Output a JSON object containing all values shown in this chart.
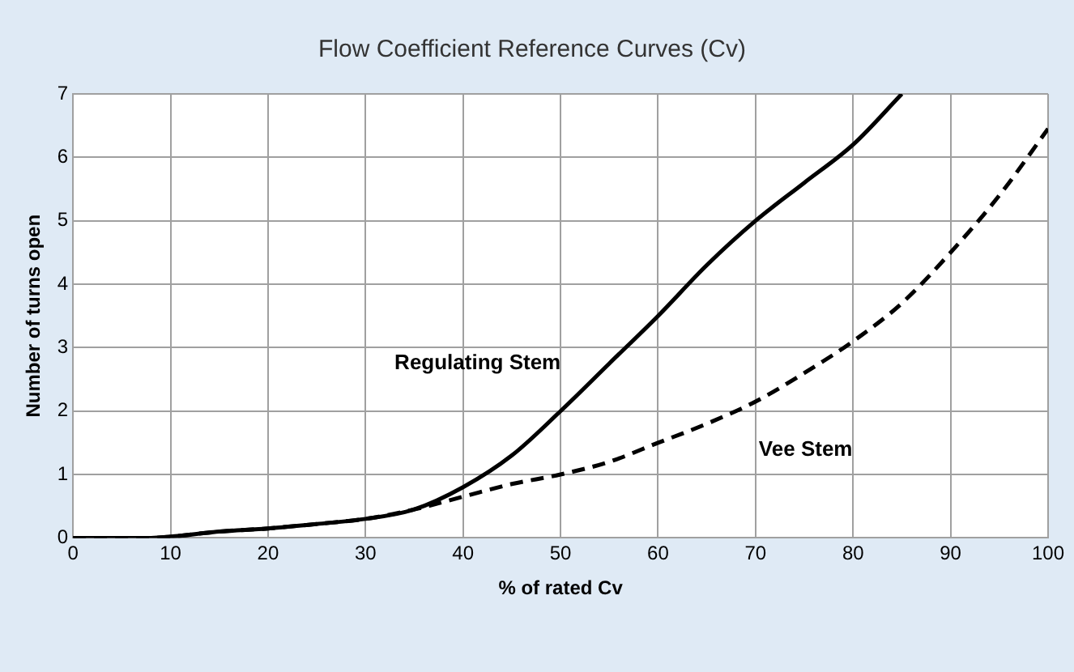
{
  "chart_data": {
    "type": "line",
    "title": "Flow Coefficient Reference Curves (Cv)",
    "xlabel": "% of rated Cv",
    "ylabel": "Number of turns open",
    "xlim": [
      0,
      100
    ],
    "xticks": [
      0,
      10,
      20,
      30,
      40,
      50,
      60,
      70,
      80,
      90,
      100
    ],
    "ylim": [
      0,
      7
    ],
    "yticks": [
      0,
      1,
      2,
      3,
      4,
      5,
      6,
      7
    ],
    "grid": true,
    "marker": "none",
    "legend": false,
    "series": [
      {
        "name": "Regulating Stem",
        "color": "#000000",
        "line_style": "solid",
        "x": [
          0,
          8,
          10,
          15,
          20,
          25,
          30,
          35,
          40,
          45,
          50,
          55,
          60,
          65,
          70,
          75,
          80,
          85
        ],
        "values": [
          0,
          0,
          0.02,
          0.1,
          0.15,
          0.22,
          0.3,
          0.45,
          0.8,
          1.3,
          2.0,
          2.75,
          3.5,
          4.3,
          5.0,
          5.6,
          6.2,
          7.0
        ]
      },
      {
        "name": "Vee Stem",
        "color": "#000000",
        "line_style": "dashed",
        "x": [
          0,
          8,
          10,
          15,
          20,
          25,
          30,
          35,
          40,
          45,
          50,
          55,
          60,
          65,
          70,
          75,
          80,
          85,
          90,
          95,
          100
        ],
        "values": [
          0,
          0,
          0.02,
          0.1,
          0.15,
          0.22,
          0.3,
          0.45,
          0.65,
          0.85,
          1.0,
          1.2,
          1.5,
          1.8,
          2.15,
          2.6,
          3.1,
          3.7,
          4.5,
          5.4,
          6.45
        ]
      }
    ]
  }
}
